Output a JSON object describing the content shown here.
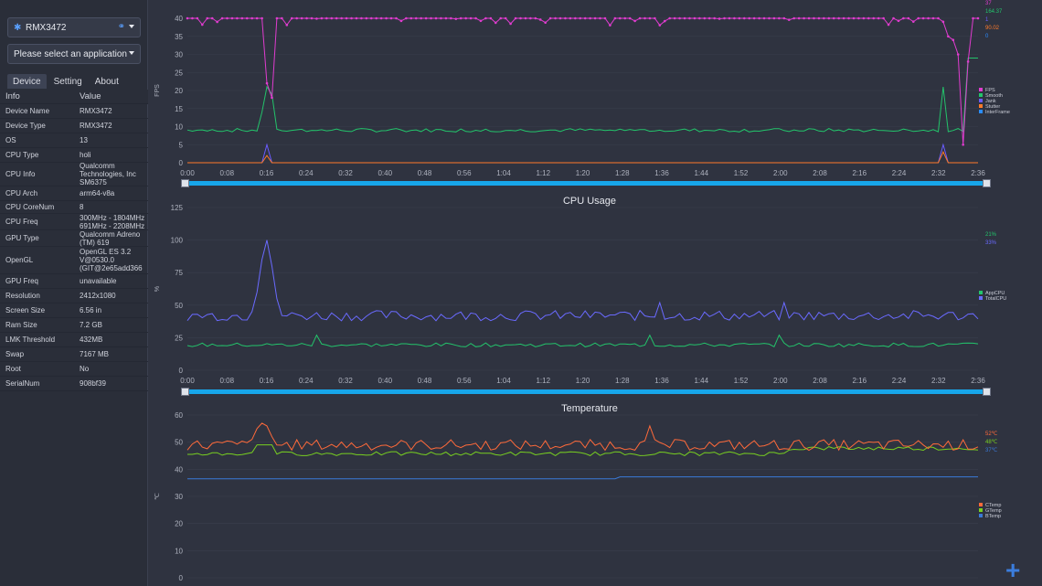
{
  "sidebar": {
    "device": "RMX3472",
    "app_placeholder": "Please select an application",
    "tabs": [
      "Device",
      "Setting",
      "About"
    ],
    "header": {
      "k": "Info",
      "v": "Value"
    },
    "rows": [
      {
        "k": "Device Name",
        "v": "RMX3472"
      },
      {
        "k": "Device Type",
        "v": "RMX3472"
      },
      {
        "k": "OS",
        "v": "13"
      },
      {
        "k": "CPU Type",
        "v": "holi"
      },
      {
        "k": "CPU Info",
        "v": "Qualcomm Technologies, Inc SM6375"
      },
      {
        "k": "CPU Arch",
        "v": "arm64-v8a"
      },
      {
        "k": "CPU CoreNum",
        "v": "8"
      },
      {
        "k": "CPU Freq",
        "v": "300MHz - 1804MHz 691MHz - 2208MHz"
      },
      {
        "k": "GPU Type",
        "v": "Qualcomm Adreno (TM) 619"
      },
      {
        "k": "OpenGL",
        "v": "OpenGL ES 3.2 V@0530.0 (GIT@2e65add366"
      },
      {
        "k": "GPU Freq",
        "v": "unavailable"
      },
      {
        "k": "Resolution",
        "v": "2412x1080"
      },
      {
        "k": "Screen Size",
        "v": "6.56 in"
      },
      {
        "k": "Ram Size",
        "v": "7.2 GB"
      },
      {
        "k": "LMK Threshold",
        "v": "432MB"
      },
      {
        "k": "Swap",
        "v": "7167 MB"
      },
      {
        "k": "Root",
        "v": "No"
      },
      {
        "k": "SerialNum",
        "v": "908bf39"
      }
    ]
  },
  "x_ticks": [
    "0:00",
    "0:08",
    "0:16",
    "0:24",
    "0:32",
    "0:40",
    "0:48",
    "0:56",
    "1:04",
    "1:12",
    "1:20",
    "1:28",
    "1:36",
    "1:44",
    "1:52",
    "2:00",
    "2:08",
    "2:16",
    "2:24",
    "2:32",
    "2:36"
  ],
  "colors": {
    "fps": "#e03ccf",
    "smooth": "#23c46b",
    "jank": "#6a5cff",
    "stutter": "#ff7a2a",
    "interframe": "#2a8cff",
    "appcpu": "#23c46b",
    "totalcpu": "#6a6aff",
    "ctemp": "#ff6a3a",
    "gtemp": "#78d020",
    "btemp": "#3a7ad8"
  },
  "chart_data": [
    {
      "type": "line",
      "title": "",
      "ylabel": "FPS",
      "ylim": [
        0,
        40
      ],
      "yticks": [
        "0",
        "5",
        "10",
        "15",
        "20",
        "25",
        "30",
        "35",
        "40"
      ],
      "current_values": [
        "37",
        "164.37",
        "1",
        "90.02",
        "0"
      ],
      "series": [
        {
          "name": "FPS",
          "color": "#e03ccf"
        },
        {
          "name": "Smooth",
          "color": "#23c46b"
        },
        {
          "name": "Jank",
          "color": "#6a5cff"
        },
        {
          "name": "Stutter",
          "color": "#ff7a2a"
        },
        {
          "name": "InterFrame",
          "color": "#2a8cff"
        }
      ]
    },
    {
      "type": "line",
      "title": "CPU Usage",
      "ylabel": "%",
      "ylim": [
        0,
        125
      ],
      "yticks": [
        "0",
        "25",
        "50",
        "75",
        "100",
        "125"
      ],
      "current_values": [
        "21%",
        "33%"
      ],
      "series": [
        {
          "name": "AppCPU",
          "color": "#23c46b"
        },
        {
          "name": "TotalCPU",
          "color": "#6a6aff"
        }
      ]
    },
    {
      "type": "line",
      "title": "Temperature",
      "ylabel": "℃",
      "ylim": [
        0,
        60
      ],
      "yticks": [
        "0",
        "10",
        "20",
        "30",
        "40",
        "50",
        "60"
      ],
      "current_values": [
        "52℃",
        "48℃",
        "37℃"
      ],
      "series": [
        {
          "name": "CTemp",
          "color": "#ff6a3a"
        },
        {
          "name": "GTemp",
          "color": "#78d020"
        },
        {
          "name": "BTemp",
          "color": "#3a7ad8"
        }
      ]
    }
  ]
}
